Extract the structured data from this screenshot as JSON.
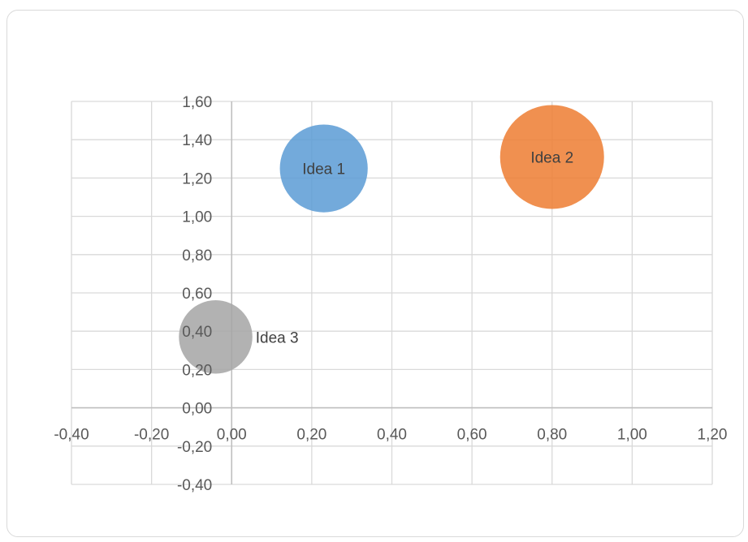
{
  "chart_data": {
    "type": "bubble",
    "title": "",
    "xlabel": "",
    "ylabel": "",
    "xlim": [
      -0.4,
      1.2
    ],
    "ylim": [
      -0.4,
      1.6
    ],
    "x_ticks": [
      "-0,40",
      "-0,20",
      "0,00",
      "0,20",
      "0,40",
      "0,60",
      "0,80",
      "1,00",
      "1,20"
    ],
    "y_ticks": [
      "-0,40",
      "-0,20",
      "0,00",
      "0,20",
      "0,40",
      "0,60",
      "0,80",
      "1,00",
      "1,20",
      "1,40",
      "1,60"
    ],
    "grid": true,
    "legend": "none",
    "points": [
      {
        "label": "Idea 1",
        "x": 0.23,
        "y": 1.25,
        "size": 1.0,
        "color": "#5b9bd5"
      },
      {
        "label": "Idea 2",
        "x": 0.8,
        "y": 1.31,
        "size": 1.4,
        "color": "#ed7d31"
      },
      {
        "label": "Idea 3",
        "x": -0.04,
        "y": 0.37,
        "size": 0.7,
        "color": "#a5a5a5"
      }
    ]
  }
}
